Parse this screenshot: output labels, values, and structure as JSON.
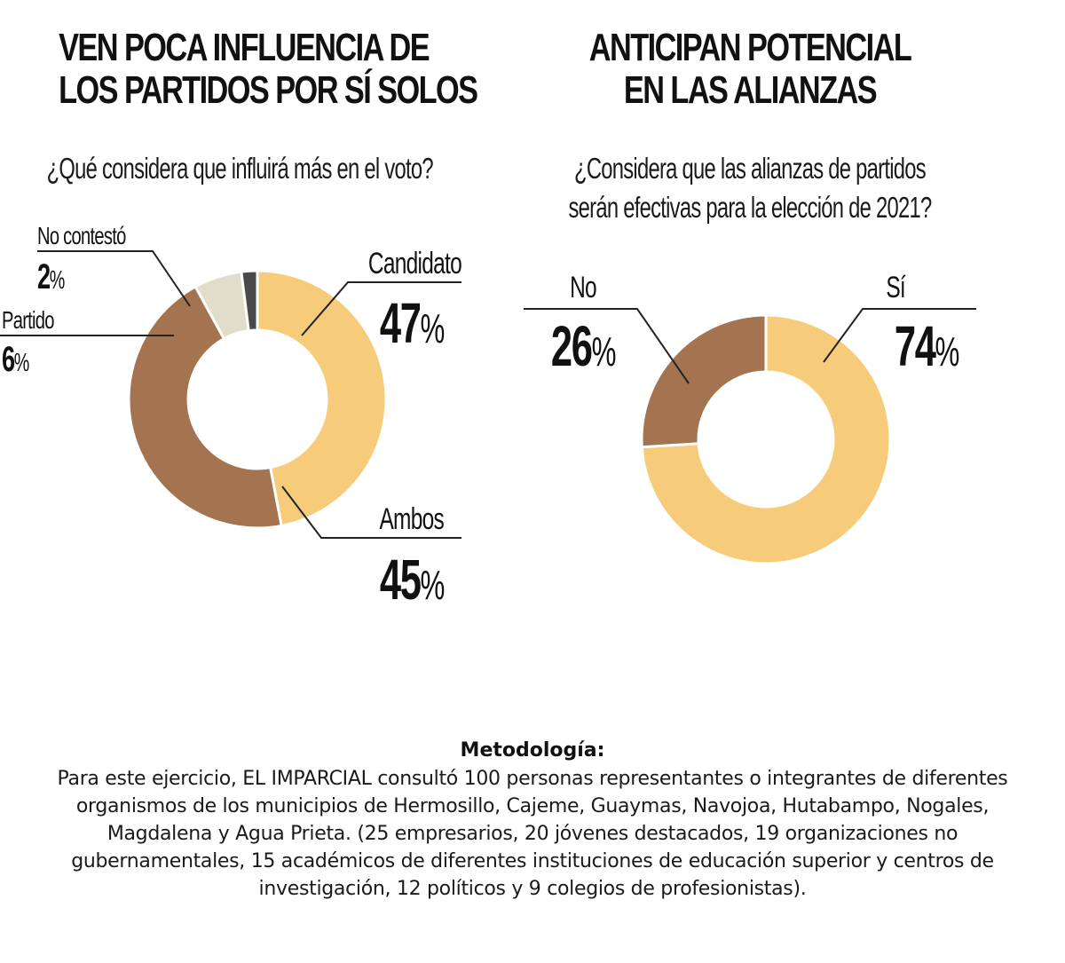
{
  "chart_data": [
    {
      "type": "pie",
      "variant": "donut",
      "title": "VEN POCA INFLUENCIA DE LOS PARTIDOS POR SÍ SOLOS",
      "title_lines": [
        "VEN POCA INFLUENCIA DE",
        "LOS PARTIDOS POR SÍ SOLOS"
      ],
      "subtitle": "¿Qué considera que influirá más en el voto?",
      "subtitle_lines": [
        "¿Qué considera que influirá más en el voto?"
      ],
      "unit": "%",
      "slices": [
        {
          "label": "Candidato",
          "value": 47,
          "color": "#F6CC7B",
          "label_side": "right"
        },
        {
          "label": "Ambos",
          "value": 45,
          "color": "#A47450",
          "label_side": "right"
        },
        {
          "label": "Partido",
          "value": 6,
          "color": "#E2DDCB",
          "label_side": "left"
        },
        {
          "label": "No contestó",
          "value": 2,
          "color": "#4A4A4A",
          "label_side": "left"
        }
      ]
    },
    {
      "type": "pie",
      "variant": "donut",
      "title": "ANTICIPAN POTENCIAL EN LAS ALIANZAS",
      "title_lines": [
        "ANTICIPAN POTENCIAL",
        "EN LAS ALIANZAS"
      ],
      "subtitle": "¿Considera que las alianzas de partidos serán efectivas para la elección de 2021?",
      "subtitle_lines": [
        "¿Considera que las alianzas de partidos",
        "serán efectivas para la elección de 2021?"
      ],
      "unit": "%",
      "slices": [
        {
          "label": "Sí",
          "value": 74,
          "color": "#F6CC7B",
          "label_side": "right"
        },
        {
          "label": "No",
          "value": 26,
          "color": "#A47450",
          "label_side": "left"
        }
      ]
    }
  ],
  "methodology": {
    "title": "Metodología:",
    "body": "Para este ejercicio, EL IMPARCIAL consultó 100 personas representantes o integrantes de diferentes organismos de los municipios de Hermosillo, Cajeme, Guaymas, Navojoa, Hutabampo, Nogales, Magdalena y Agua Prieta. (25 empresarios, 20 jóvenes destacados, 19 organizaciones no gubernamentales, 15 académicos de diferentes instituciones de educación superior y centros de investigación, 12 políticos y 9 colegios de profesionistas)."
  }
}
